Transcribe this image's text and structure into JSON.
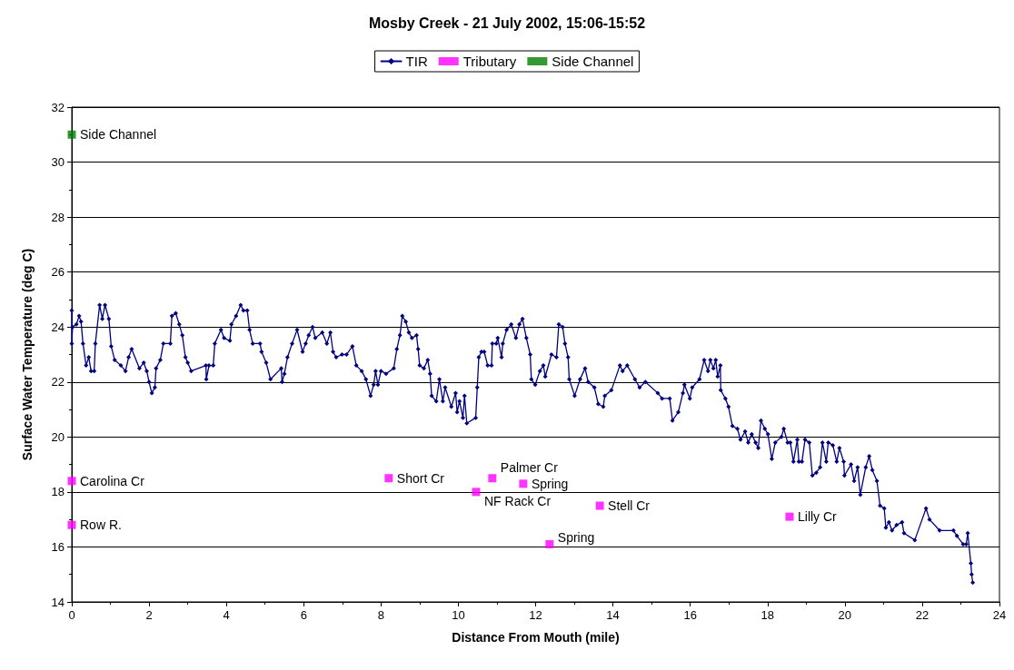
{
  "chart_data": {
    "type": "line",
    "title": "Mosby Creek - 21 July 2002, 15:06-15:52",
    "xlabel": "Distance From Mouth (mile)",
    "ylabel": "Surface Water Temperature (deg C)",
    "xlim": [
      0,
      24
    ],
    "xticks": [
      0,
      {
        "value": 1,
        "label": null
      },
      2,
      {
        "value": 3,
        "label": null
      },
      4,
      {
        "value": 5,
        "label": null
      },
      6,
      {
        "value": 7,
        "label": null
      },
      8,
      {
        "value": 9,
        "label": null
      },
      10,
      {
        "value": 11,
        "label": null
      },
      12,
      {
        "value": 13,
        "label": null
      },
      14,
      {
        "value": 15,
        "label": null
      },
      16,
      {
        "value": 17,
        "label": null
      },
      18,
      {
        "value": 19,
        "label": null
      },
      20,
      {
        "value": 21,
        "label": null
      },
      22,
      {
        "value": 23,
        "label": null
      },
      24
    ],
    "ylim": [
      14,
      32
    ],
    "yticks": [
      14,
      {
        "value": 15,
        "label": null
      },
      16,
      {
        "value": 17,
        "label": null
      },
      18,
      {
        "value": 19,
        "label": null
      },
      20,
      {
        "value": 21,
        "label": null
      },
      22,
      {
        "value": 23,
        "label": null
      },
      24,
      {
        "value": 25,
        "label": null
      },
      26,
      {
        "value": 27,
        "label": null
      },
      28,
      {
        "value": 29,
        "label": null
      },
      30,
      {
        "value": 31,
        "label": null
      },
      32
    ],
    "grid": "y",
    "legend": "top",
    "series": [
      {
        "name": "TIR",
        "color": "#000080",
        "marker": "diamond",
        "line_style": "solid",
        "x": [
          0.0,
          0.0,
          0.02,
          0.12,
          0.19,
          0.24,
          0.29,
          0.37,
          0.44,
          0.5,
          0.58,
          0.61,
          0.72,
          0.79,
          0.86,
          0.96,
          1.02,
          1.11,
          1.27,
          1.39,
          1.47,
          1.55,
          1.75,
          1.86,
          1.94,
          2.0,
          2.07,
          2.15,
          2.18,
          2.29,
          2.37,
          2.55,
          2.59,
          2.69,
          2.78,
          2.86,
          2.94,
          3.0,
          3.09,
          3.47,
          3.48,
          3.55,
          3.66,
          3.7,
          3.86,
          3.94,
          4.09,
          4.13,
          4.25,
          4.37,
          4.44,
          4.54,
          4.6,
          4.68,
          4.87,
          4.91,
          5.03,
          5.14,
          5.42,
          5.44,
          5.5,
          5.58,
          5.7,
          5.83,
          5.97,
          6.05,
          6.13,
          6.23,
          6.3,
          6.48,
          6.6,
          6.69,
          6.76,
          6.84,
          6.99,
          7.11,
          7.26,
          7.36,
          7.5,
          7.61,
          7.73,
          7.81,
          7.86,
          7.92,
          8.0,
          8.13,
          8.33,
          8.41,
          8.49,
          8.55,
          8.64,
          8.72,
          8.8,
          8.92,
          8.96,
          9.0,
          9.11,
          9.21,
          9.27,
          9.31,
          9.43,
          9.51,
          9.6,
          9.66,
          9.82,
          9.93,
          9.97,
          10.03,
          10.12,
          10.16,
          10.22,
          10.45,
          10.49,
          10.53,
          10.6,
          10.67,
          10.76,
          10.86,
          10.88,
          10.98,
          11.02,
          11.12,
          11.15,
          11.25,
          11.37,
          11.49,
          11.58,
          11.66,
          11.76,
          11.86,
          11.89,
          11.99,
          12.11,
          12.2,
          12.25,
          12.41,
          12.54,
          12.6,
          12.7,
          12.76,
          12.84,
          12.87,
          13.01,
          13.15,
          13.28,
          13.36,
          13.52,
          13.62,
          13.75,
          13.79,
          13.96,
          14.18,
          14.25,
          14.37,
          14.57,
          14.69,
          14.84,
          15.16,
          15.27,
          15.47,
          15.54,
          15.69,
          15.81,
          15.85,
          15.99,
          16.05,
          16.24,
          16.36,
          16.46,
          16.52,
          16.6,
          16.66,
          16.71,
          16.78,
          16.79,
          16.91,
          16.99,
          17.09,
          17.22,
          17.3,
          17.42,
          17.5,
          17.59,
          17.69,
          17.76,
          17.83,
          17.93,
          18.01,
          18.11,
          18.2,
          18.36,
          18.42,
          18.52,
          18.59,
          18.67,
          18.77,
          18.81,
          18.89,
          18.97,
          19.08,
          19.16,
          19.26,
          19.36,
          19.42,
          19.52,
          19.57,
          19.69,
          19.79,
          19.86,
          19.97,
          19.99,
          20.16,
          20.24,
          20.33,
          20.4,
          20.54,
          20.63,
          20.71,
          20.83,
          20.91,
          21.02,
          21.06,
          21.14,
          21.22,
          21.34,
          21.48,
          21.53,
          21.81,
          22.1,
          22.19,
          22.45,
          22.81,
          22.9,
          23.06,
          23.14,
          23.18,
          23.26,
          23.28,
          23.31
        ],
        "values": [
          24.6,
          23.4,
          24.0,
          24.1,
          24.4,
          24.2,
          23.4,
          22.6,
          22.9,
          22.4,
          22.4,
          23.4,
          24.8,
          24.3,
          24.8,
          24.3,
          23.3,
          22.8,
          22.6,
          22.4,
          22.9,
          23.2,
          22.5,
          22.7,
          22.4,
          22.0,
          21.6,
          21.8,
          22.5,
          22.8,
          23.4,
          23.4,
          24.4,
          24.5,
          24.1,
          23.7,
          22.9,
          22.7,
          22.4,
          22.6,
          22.1,
          22.6,
          22.6,
          23.4,
          23.9,
          23.6,
          23.5,
          24.1,
          24.4,
          24.8,
          24.6,
          24.6,
          23.9,
          23.4,
          23.4,
          23.1,
          22.7,
          22.1,
          22.5,
          22.0,
          22.3,
          22.9,
          23.4,
          23.9,
          23.1,
          23.4,
          23.7,
          24.0,
          23.6,
          23.8,
          23.4,
          23.8,
          23.1,
          22.9,
          23.0,
          23.0,
          23.3,
          22.6,
          22.4,
          22.1,
          21.5,
          21.9,
          22.4,
          21.9,
          22.4,
          22.3,
          22.5,
          23.2,
          23.7,
          24.4,
          24.2,
          23.8,
          23.6,
          23.7,
          23.2,
          22.6,
          22.5,
          22.8,
          22.3,
          21.5,
          21.3,
          22.1,
          21.3,
          21.8,
          21.1,
          21.6,
          20.9,
          21.3,
          20.7,
          21.5,
          20.5,
          20.7,
          21.8,
          22.9,
          23.1,
          23.1,
          22.6,
          22.6,
          23.4,
          23.4,
          23.6,
          22.9,
          23.4,
          23.9,
          24.1,
          23.6,
          24.1,
          24.3,
          23.6,
          23.0,
          22.1,
          21.9,
          22.4,
          22.6,
          22.2,
          23.0,
          22.9,
          24.1,
          24.0,
          23.4,
          22.9,
          22.1,
          21.5,
          22.1,
          22.5,
          22.0,
          21.8,
          21.2,
          21.1,
          21.5,
          21.7,
          22.6,
          22.4,
          22.6,
          22.1,
          21.8,
          22.0,
          21.6,
          21.4,
          21.4,
          20.6,
          20.9,
          21.6,
          21.9,
          21.4,
          21.8,
          22.1,
          22.8,
          22.4,
          22.8,
          22.5,
          22.8,
          22.2,
          22.6,
          21.7,
          21.4,
          21.1,
          20.4,
          20.3,
          19.9,
          20.2,
          19.8,
          20.1,
          19.8,
          19.6,
          20.6,
          20.3,
          20.1,
          19.2,
          19.8,
          20.0,
          20.3,
          19.8,
          19.8,
          19.1,
          19.9,
          19.1,
          19.1,
          19.9,
          19.8,
          18.6,
          18.7,
          18.9,
          19.8,
          19.1,
          19.8,
          19.7,
          19.1,
          19.6,
          19.1,
          18.6,
          19.0,
          18.4,
          18.9,
          17.9,
          18.9,
          19.3,
          18.8,
          18.4,
          17.5,
          17.4,
          16.7,
          16.9,
          16.6,
          16.8,
          16.9,
          16.5,
          16.25,
          17.4,
          17.0,
          16.6,
          16.6,
          16.4,
          16.1,
          16.1,
          16.5,
          15.4,
          15.0,
          14.7
        ]
      },
      {
        "name": "Tributary",
        "type": "scatter",
        "color": "#ff00ff",
        "marker": "square",
        "x": [
          0,
          0,
          8.2,
          10.46,
          10.88,
          11.68,
          12.36,
          13.66,
          18.57
        ],
        "values": [
          18.4,
          16.8,
          18.5,
          18.0,
          18.5,
          18.3,
          16.1,
          17.5,
          17.1
        ]
      },
      {
        "name": "Side Channel",
        "type": "scatter",
        "color": "#008000",
        "marker": "square",
        "x": [
          0
        ],
        "values": [
          31.0
        ]
      }
    ],
    "annotations": [
      {
        "text": "Side Channel",
        "x": 0,
        "y": 31.0
      },
      {
        "text": "Carolina Cr",
        "x": 0,
        "y": 18.4
      },
      {
        "text": "Row R.",
        "x": 0,
        "y": 16.8
      },
      {
        "text": "Short Cr",
        "x": 8.2,
        "y": 18.5
      },
      {
        "text": "NF Rack Cr",
        "x": 10.46,
        "y": 18.0
      },
      {
        "text": "Palmer Cr",
        "x": 10.88,
        "y": 18.5
      },
      {
        "text": "Spring",
        "x": 11.68,
        "y": 18.3
      },
      {
        "text": "Spring",
        "x": 12.36,
        "y": 16.1
      },
      {
        "text": "Stell Cr",
        "x": 13.66,
        "y": 17.5
      },
      {
        "text": "Lilly Cr",
        "x": 18.57,
        "y": 17.1
      }
    ]
  }
}
